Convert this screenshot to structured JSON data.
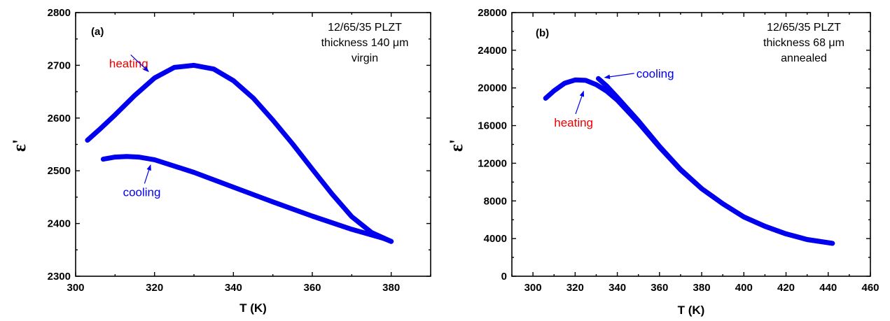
{
  "chart_data": [
    {
      "type": "line",
      "panel_label": "(a)",
      "xlabel": "T (K)",
      "ylabel": "ε'",
      "xlim": [
        300,
        390
      ],
      "ylim": [
        2300,
        2800
      ],
      "xticks": [
        300,
        320,
        340,
        360,
        380
      ],
      "yticks": [
        2300,
        2400,
        2500,
        2600,
        2700,
        2800
      ],
      "info_lines": [
        "12/65/35 PLZT",
        "thickness 140 μm",
        "virgin"
      ],
      "series": [
        {
          "name": "heating",
          "color": "#0000ee",
          "x": [
            303,
            306,
            310,
            315,
            320,
            325,
            330,
            335,
            340,
            345,
            350,
            355,
            360,
            365,
            370,
            375,
            380
          ],
          "y": [
            2558,
            2578,
            2606,
            2643,
            2676,
            2696,
            2700,
            2693,
            2671,
            2638,
            2596,
            2551,
            2503,
            2456,
            2413,
            2383,
            2366
          ]
        },
        {
          "name": "cooling",
          "color": "#0000ee",
          "x": [
            307,
            310,
            313,
            316,
            320,
            330,
            340,
            350,
            360,
            370,
            378,
            380
          ],
          "y": [
            2522,
            2526,
            2527,
            2526,
            2521,
            2497,
            2469,
            2441,
            2414,
            2389,
            2372,
            2366
          ]
        }
      ],
      "annotations": [
        {
          "text": "heating",
          "color": "#ee0000",
          "x": 308.5,
          "y": 2696,
          "arrow_to": [
            318.5,
            2688
          ]
        },
        {
          "text": "cooling",
          "color": "#0000ee",
          "x": 312,
          "y": 2452,
          "arrow_to": [
            319,
            2511
          ]
        }
      ]
    },
    {
      "type": "line",
      "panel_label": "(b)",
      "xlabel": "T (K)",
      "ylabel": "ε'",
      "xlim": [
        290,
        460
      ],
      "ylim": [
        0,
        28000
      ],
      "xticks": [
        300,
        320,
        340,
        360,
        380,
        400,
        420,
        440,
        460
      ],
      "yticks": [
        0,
        4000,
        8000,
        12000,
        16000,
        20000,
        24000,
        28000
      ],
      "info_lines": [
        "12/65/35 PLZT",
        "thickness 68 μm",
        "annealed"
      ],
      "series": [
        {
          "name": "heating",
          "color": "#0000ee",
          "x": [
            306,
            310,
            315,
            320,
            325,
            330,
            335,
            340,
            350,
            360,
            370,
            380,
            390,
            400,
            410,
            420,
            430,
            442
          ],
          "y": [
            18900,
            19700,
            20500,
            20850,
            20800,
            20350,
            19650,
            18700,
            16300,
            13700,
            11300,
            9300,
            7700,
            6300,
            5300,
            4500,
            3900,
            3500
          ]
        },
        {
          "name": "cooling",
          "color": "#0000ee",
          "x": [
            331,
            335,
            340,
            350,
            360,
            370,
            380,
            390,
            400,
            410,
            420,
            430,
            442
          ],
          "y": [
            21000,
            20200,
            19000,
            16500,
            13800,
            11350,
            9300,
            7700,
            6300,
            5300,
            4500,
            3900,
            3500
          ]
        }
      ],
      "annotations": [
        {
          "text": "cooling",
          "color": "#0000ee",
          "x": 349,
          "y": 21100,
          "arrow_to": [
            334,
            21100
          ]
        },
        {
          "text": "heating",
          "color": "#ee0000",
          "x": 310,
          "y": 15900,
          "arrow_to": [
            324,
            19650
          ]
        }
      ]
    }
  ]
}
